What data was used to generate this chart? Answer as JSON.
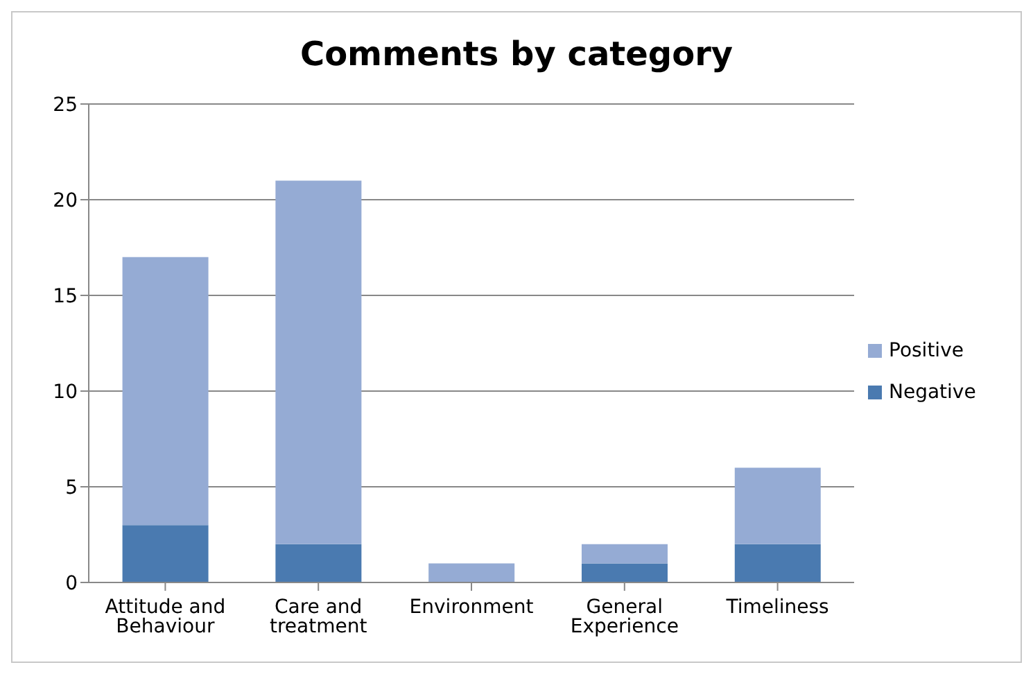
{
  "chart_data": {
    "type": "bar",
    "title": "Comments by category",
    "categories": [
      "Attitude and Behaviour",
      "Care and treatment",
      "Environment",
      "General Experience",
      "Timeliness"
    ],
    "stacked": true,
    "series": [
      {
        "name": "Negative",
        "color": "#4a7ab0",
        "values": [
          3,
          2,
          0,
          1,
          2
        ]
      },
      {
        "name": "Positive",
        "color": "#95abd4",
        "values": [
          14,
          19,
          1,
          1,
          4
        ]
      }
    ],
    "ylim": [
      0,
      25
    ],
    "yticks": [
      0,
      5,
      10,
      15,
      20,
      25
    ],
    "grid": "y",
    "legend": "right"
  }
}
